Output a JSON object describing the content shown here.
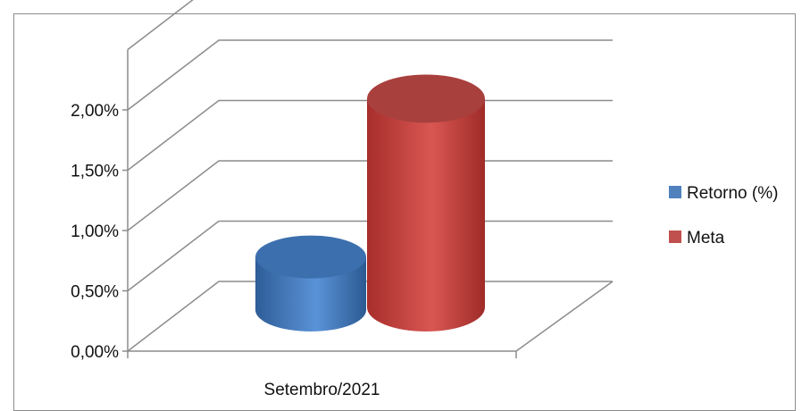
{
  "chart_data": {
    "type": "bar",
    "style": "3d-cylinder",
    "categories": [
      "Setembro/2021"
    ],
    "series": [
      {
        "name": "Retorno (%)",
        "values": [
          0.0044
        ],
        "color": "#4f81bd"
      },
      {
        "name": "Meta",
        "values": [
          0.0173
        ],
        "color": "#c0504d"
      }
    ],
    "ylim": [
      0,
      0.025
    ],
    "yticks": [
      "0,00%",
      "0,50%",
      "1,00%",
      "1,50%",
      "2,00%"
    ],
    "ytick_values": [
      0,
      0.005,
      0.01,
      0.015,
      0.02
    ],
    "grid": true,
    "legend_position": "right",
    "colors": {
      "grid": "#8c8c8c",
      "border": "#8c8c8c"
    }
  }
}
